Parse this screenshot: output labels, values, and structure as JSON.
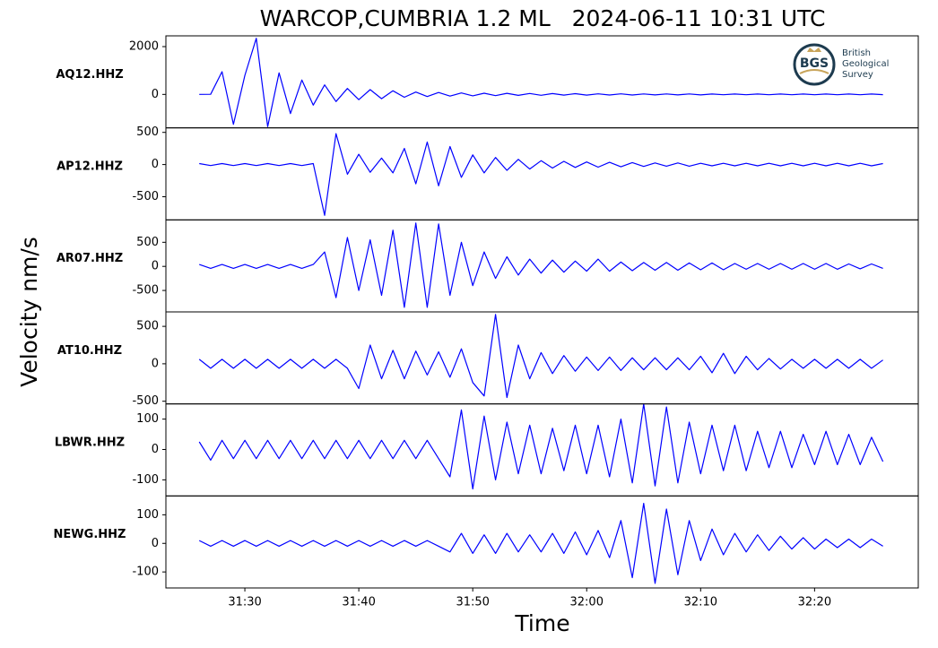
{
  "title": "WARCOP,CUMBRIA 1.2 ML   2024-06-11 10:31 UTC",
  "ylabel": "Velocity nm/s",
  "xlabel": "Time",
  "logo": {
    "abbr": "BGS",
    "lines": [
      "British",
      "Geological",
      "Survey"
    ]
  },
  "chart_data": [
    {
      "type": "line",
      "label": "AQ12.HHZ",
      "xlim": [
        23.07,
        89.1
      ],
      "ylim": [
        -1400,
        2450
      ],
      "yticks": [
        0,
        2000
      ],
      "x": [
        26,
        27,
        28,
        29,
        30,
        31,
        32,
        33,
        34,
        35,
        36,
        37,
        38,
        39,
        40,
        41,
        42,
        43,
        44,
        45,
        46,
        47,
        48,
        49,
        50,
        51,
        52,
        53,
        54,
        55,
        56,
        57,
        58,
        59,
        60,
        61,
        62,
        63,
        64,
        65,
        66,
        67,
        68,
        69,
        70,
        71,
        72,
        73,
        74,
        75,
        76,
        77,
        78,
        79,
        80,
        81,
        82,
        83,
        84,
        85,
        86
      ],
      "series": [
        {
          "color": "#0000ff",
          "values": [
            0,
            5,
            950,
            -1250,
            800,
            2350,
            -1350,
            900,
            -800,
            600,
            -450,
            400,
            -300,
            250,
            -220,
            200,
            -180,
            150,
            -120,
            100,
            -90,
            80,
            -70,
            60,
            -60,
            50,
            -50,
            45,
            -40,
            40,
            -35,
            35,
            -30,
            30,
            -30,
            25,
            -25,
            25,
            -25,
            20,
            -20,
            20,
            -20,
            20,
            -20,
            15,
            -15,
            15,
            -15,
            15,
            -15,
            15,
            -15,
            15,
            -15,
            15,
            -15,
            15,
            -15,
            15,
            -10
          ]
        }
      ]
    },
    {
      "type": "line",
      "label": "AP12.HHZ",
      "xlim": [
        23.07,
        89.1
      ],
      "ylim": [
        -860,
        570
      ],
      "yticks": [
        500,
        0,
        -500
      ],
      "x": [
        26,
        27,
        28,
        29,
        30,
        31,
        32,
        33,
        34,
        35,
        36,
        37,
        38,
        39,
        40,
        41,
        42,
        43,
        44,
        45,
        46,
        47,
        48,
        49,
        50,
        51,
        52,
        53,
        54,
        55,
        56,
        57,
        58,
        59,
        60,
        61,
        62,
        63,
        64,
        65,
        66,
        67,
        68,
        69,
        70,
        71,
        72,
        73,
        74,
        75,
        76,
        77,
        78,
        79,
        80,
        81,
        82,
        83,
        84,
        85,
        86
      ],
      "series": [
        {
          "color": "#0000ff",
          "values": [
            15,
            -15,
            15,
            -15,
            15,
            -15,
            15,
            -15,
            15,
            -15,
            15,
            -790,
            480,
            -150,
            160,
            -120,
            100,
            -130,
            250,
            -300,
            350,
            -330,
            280,
            -200,
            150,
            -130,
            110,
            -90,
            80,
            -70,
            60,
            -55,
            50,
            -45,
            40,
            -40,
            35,
            -35,
            30,
            -30,
            25,
            -25,
            25,
            -25,
            20,
            -20,
            20,
            -20,
            20,
            -20,
            20,
            -20,
            20,
            -20,
            20,
            -20,
            20,
            -20,
            20,
            -20,
            15
          ]
        }
      ]
    },
    {
      "type": "line",
      "label": "AR07.HHZ",
      "xlim": [
        23.07,
        89.1
      ],
      "ylim": [
        -945,
        965
      ],
      "yticks": [
        500,
        0,
        -500
      ],
      "x": [
        26,
        27,
        28,
        29,
        30,
        31,
        32,
        33,
        34,
        35,
        36,
        37,
        38,
        39,
        40,
        41,
        42,
        43,
        44,
        45,
        46,
        47,
        48,
        49,
        50,
        51,
        52,
        53,
        54,
        55,
        56,
        57,
        58,
        59,
        60,
        61,
        62,
        63,
        64,
        65,
        66,
        67,
        68,
        69,
        70,
        71,
        72,
        73,
        74,
        75,
        76,
        77,
        78,
        79,
        80,
        81,
        82,
        83,
        84,
        85,
        86
      ],
      "series": [
        {
          "color": "#0000ff",
          "values": [
            40,
            -40,
            40,
            -40,
            40,
            -40,
            40,
            -40,
            40,
            -40,
            40,
            300,
            -650,
            600,
            -500,
            550,
            -600,
            750,
            -850,
            900,
            -850,
            880,
            -600,
            500,
            -400,
            300,
            -250,
            200,
            -180,
            150,
            -140,
            130,
            -120,
            110,
            -100,
            150,
            -100,
            90,
            -90,
            80,
            -80,
            80,
            -80,
            70,
            -70,
            70,
            -70,
            60,
            -60,
            60,
            -60,
            60,
            -60,
            60,
            -60,
            60,
            -60,
            50,
            -50,
            50,
            -40
          ]
        }
      ]
    },
    {
      "type": "line",
      "label": "AT10.HHZ",
      "xlim": [
        23.07,
        89.1
      ],
      "ylim": [
        -536,
        693
      ],
      "yticks": [
        500,
        0,
        -500
      ],
      "x": [
        26,
        27,
        28,
        29,
        30,
        31,
        32,
        33,
        34,
        35,
        36,
        37,
        38,
        39,
        40,
        41,
        42,
        43,
        44,
        45,
        46,
        47,
        48,
        49,
        50,
        51,
        52,
        53,
        54,
        55,
        56,
        57,
        58,
        59,
        60,
        61,
        62,
        63,
        64,
        65,
        66,
        67,
        68,
        69,
        70,
        71,
        72,
        73,
        74,
        75,
        76,
        77,
        78,
        79,
        80,
        81,
        82,
        83,
        84,
        85,
        86
      ],
      "series": [
        {
          "color": "#0000ff",
          "values": [
            60,
            -60,
            60,
            -60,
            60,
            -60,
            60,
            -60,
            60,
            -60,
            60,
            -60,
            60,
            -60,
            -330,
            250,
            -200,
            180,
            -200,
            170,
            -150,
            160,
            -180,
            200,
            -250,
            -430,
            660,
            -450,
            250,
            -200,
            150,
            -130,
            110,
            -100,
            90,
            -90,
            90,
            -90,
            80,
            -80,
            80,
            -80,
            80,
            -80,
            100,
            -120,
            140,
            -130,
            100,
            -80,
            70,
            -70,
            60,
            -60,
            60,
            -60,
            60,
            -60,
            60,
            -60,
            50
          ]
        }
      ]
    },
    {
      "type": "line",
      "label": "LBWR.HHZ",
      "xlim": [
        23.07,
        89.1
      ],
      "ylim": [
        -153,
        150
      ],
      "yticks": [
        100,
        0,
        -100
      ],
      "x": [
        26,
        27,
        28,
        29,
        30,
        31,
        32,
        33,
        34,
        35,
        36,
        37,
        38,
        39,
        40,
        41,
        42,
        43,
        44,
        45,
        46,
        47,
        48,
        49,
        50,
        51,
        52,
        53,
        54,
        55,
        56,
        57,
        58,
        59,
        60,
        61,
        62,
        63,
        64,
        65,
        66,
        67,
        68,
        69,
        70,
        71,
        72,
        73,
        74,
        75,
        76,
        77,
        78,
        79,
        80,
        81,
        82,
        83,
        84,
        85,
        86
      ],
      "series": [
        {
          "color": "#0000ff",
          "values": [
            25,
            -35,
            30,
            -30,
            30,
            -30,
            30,
            -30,
            30,
            -30,
            30,
            -30,
            30,
            -30,
            30,
            -30,
            30,
            -30,
            30,
            -30,
            30,
            -30,
            -90,
            130,
            -130,
            110,
            -100,
            90,
            -80,
            80,
            -80,
            70,
            -70,
            80,
            -80,
            80,
            -90,
            100,
            -110,
            150,
            -120,
            140,
            -110,
            90,
            -80,
            80,
            -70,
            80,
            -70,
            60,
            -60,
            60,
            -60,
            50,
            -50,
            60,
            -50,
            50,
            -50,
            40,
            -40
          ]
        }
      ]
    },
    {
      "type": "line",
      "label": "NEWG.HHZ",
      "xlim": [
        23.07,
        89.1
      ],
      "ylim": [
        -156,
        166
      ],
      "yticks": [
        100,
        0,
        -100
      ],
      "xticks": [
        {
          "value": 30,
          "label": "31:30"
        },
        {
          "value": 40,
          "label": "31:40"
        },
        {
          "value": 50,
          "label": "31:50"
        },
        {
          "value": 60,
          "label": "32:00"
        },
        {
          "value": 70,
          "label": "32:10"
        },
        {
          "value": 80,
          "label": "32:20"
        }
      ],
      "x": [
        26,
        27,
        28,
        29,
        30,
        31,
        32,
        33,
        34,
        35,
        36,
        37,
        38,
        39,
        40,
        41,
        42,
        43,
        44,
        45,
        46,
        47,
        48,
        49,
        50,
        51,
        52,
        53,
        54,
        55,
        56,
        57,
        58,
        59,
        60,
        61,
        62,
        63,
        64,
        65,
        66,
        67,
        68,
        69,
        70,
        71,
        72,
        73,
        74,
        75,
        76,
        77,
        78,
        79,
        80,
        81,
        82,
        83,
        84,
        85,
        86
      ],
      "series": [
        {
          "color": "#0000ff",
          "values": [
            10,
            -10,
            10,
            -10,
            10,
            -10,
            10,
            -10,
            10,
            -10,
            10,
            -10,
            10,
            -10,
            10,
            -10,
            10,
            -10,
            10,
            -10,
            10,
            -10,
            -30,
            35,
            -35,
            30,
            -35,
            35,
            -30,
            30,
            -30,
            35,
            -35,
            40,
            -40,
            45,
            -50,
            80,
            -120,
            140,
            -140,
            120,
            -110,
            80,
            -60,
            50,
            -40,
            35,
            -30,
            30,
            -25,
            25,
            -20,
            20,
            -20,
            15,
            -15,
            15,
            -15,
            15,
            -10
          ]
        }
      ]
    }
  ]
}
